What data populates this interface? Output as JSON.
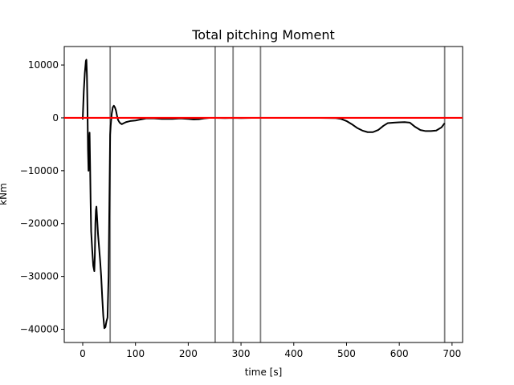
{
  "chart_data": {
    "type": "line",
    "title": "Total pitching Moment",
    "xlabel": "time [s]",
    "ylabel": "kNm",
    "xlim": [
      -35,
      720
    ],
    "ylim": [
      -42500,
      13500
    ],
    "xticks": [
      0,
      100,
      200,
      300,
      400,
      500,
      600,
      700
    ],
    "yticks": [
      10000,
      0,
      -10000,
      -20000,
      -30000,
      -40000
    ],
    "xtick_labels": [
      "0",
      "100",
      "200",
      "300",
      "400",
      "500",
      "600",
      "700"
    ],
    "ytick_labels": [
      "10000",
      "0",
      "−10000",
      "−20000",
      "−30000",
      "−40000"
    ],
    "grid": false,
    "vertical_lines": [
      52,
      251,
      285,
      337,
      686
    ],
    "reference_line_y": 0,
    "series": [
      {
        "color": "#000000",
        "points": [
          [
            0,
            -300
          ],
          [
            2,
            5000
          ],
          [
            4,
            8500
          ],
          [
            6,
            10800
          ],
          [
            7,
            11000
          ],
          [
            8,
            8000
          ],
          [
            9,
            2000
          ],
          [
            10,
            -6000
          ],
          [
            11,
            -10000
          ],
          [
            12,
            -5000
          ],
          [
            13,
            -2800
          ],
          [
            14,
            -9000
          ],
          [
            15,
            -16000
          ],
          [
            16,
            -21500
          ],
          [
            18,
            -25000
          ],
          [
            20,
            -28000
          ],
          [
            22,
            -29000
          ],
          [
            23,
            -26000
          ],
          [
            24,
            -20000
          ],
          [
            25,
            -17500
          ],
          [
            26,
            -16800
          ],
          [
            27,
            -18500
          ],
          [
            29,
            -22000
          ],
          [
            31,
            -24500
          ],
          [
            33,
            -27000
          ],
          [
            35,
            -30000
          ],
          [
            37,
            -34000
          ],
          [
            39,
            -37500
          ],
          [
            41,
            -39800
          ],
          [
            43,
            -39600
          ],
          [
            45,
            -38500
          ],
          [
            47,
            -37800
          ],
          [
            49,
            -30000
          ],
          [
            51,
            -12000
          ],
          [
            52,
            -3200
          ],
          [
            53,
            -1500
          ],
          [
            55,
            800
          ],
          [
            57,
            2000
          ],
          [
            59,
            2300
          ],
          [
            61,
            2000
          ],
          [
            63,
            1400
          ],
          [
            65,
            400
          ],
          [
            67,
            -400
          ],
          [
            70,
            -900
          ],
          [
            74,
            -1200
          ],
          [
            78,
            -1000
          ],
          [
            82,
            -800
          ],
          [
            90,
            -600
          ],
          [
            100,
            -500
          ],
          [
            110,
            -300
          ],
          [
            120,
            -100
          ],
          [
            135,
            -100
          ],
          [
            150,
            -200
          ],
          [
            170,
            -200
          ],
          [
            185,
            -100
          ],
          [
            200,
            -200
          ],
          [
            210,
            -300
          ],
          [
            220,
            -250
          ],
          [
            230,
            -100
          ],
          [
            240,
            0
          ],
          [
            251,
            0
          ],
          [
            270,
            -50
          ],
          [
            285,
            0
          ],
          [
            300,
            -50
          ],
          [
            320,
            0
          ],
          [
            337,
            0
          ],
          [
            360,
            0
          ],
          [
            400,
            0
          ],
          [
            450,
            0
          ],
          [
            480,
            -50
          ],
          [
            490,
            -200
          ],
          [
            500,
            -600
          ],
          [
            510,
            -1200
          ],
          [
            520,
            -1900
          ],
          [
            530,
            -2400
          ],
          [
            540,
            -2700
          ],
          [
            550,
            -2700
          ],
          [
            560,
            -2300
          ],
          [
            570,
            -1500
          ],
          [
            578,
            -1000
          ],
          [
            590,
            -900
          ],
          [
            600,
            -850
          ],
          [
            610,
            -800
          ],
          [
            620,
            -900
          ],
          [
            630,
            -1700
          ],
          [
            640,
            -2300
          ],
          [
            650,
            -2500
          ],
          [
            660,
            -2500
          ],
          [
            670,
            -2400
          ],
          [
            680,
            -1800
          ],
          [
            686,
            -1000
          ]
        ]
      }
    ]
  }
}
